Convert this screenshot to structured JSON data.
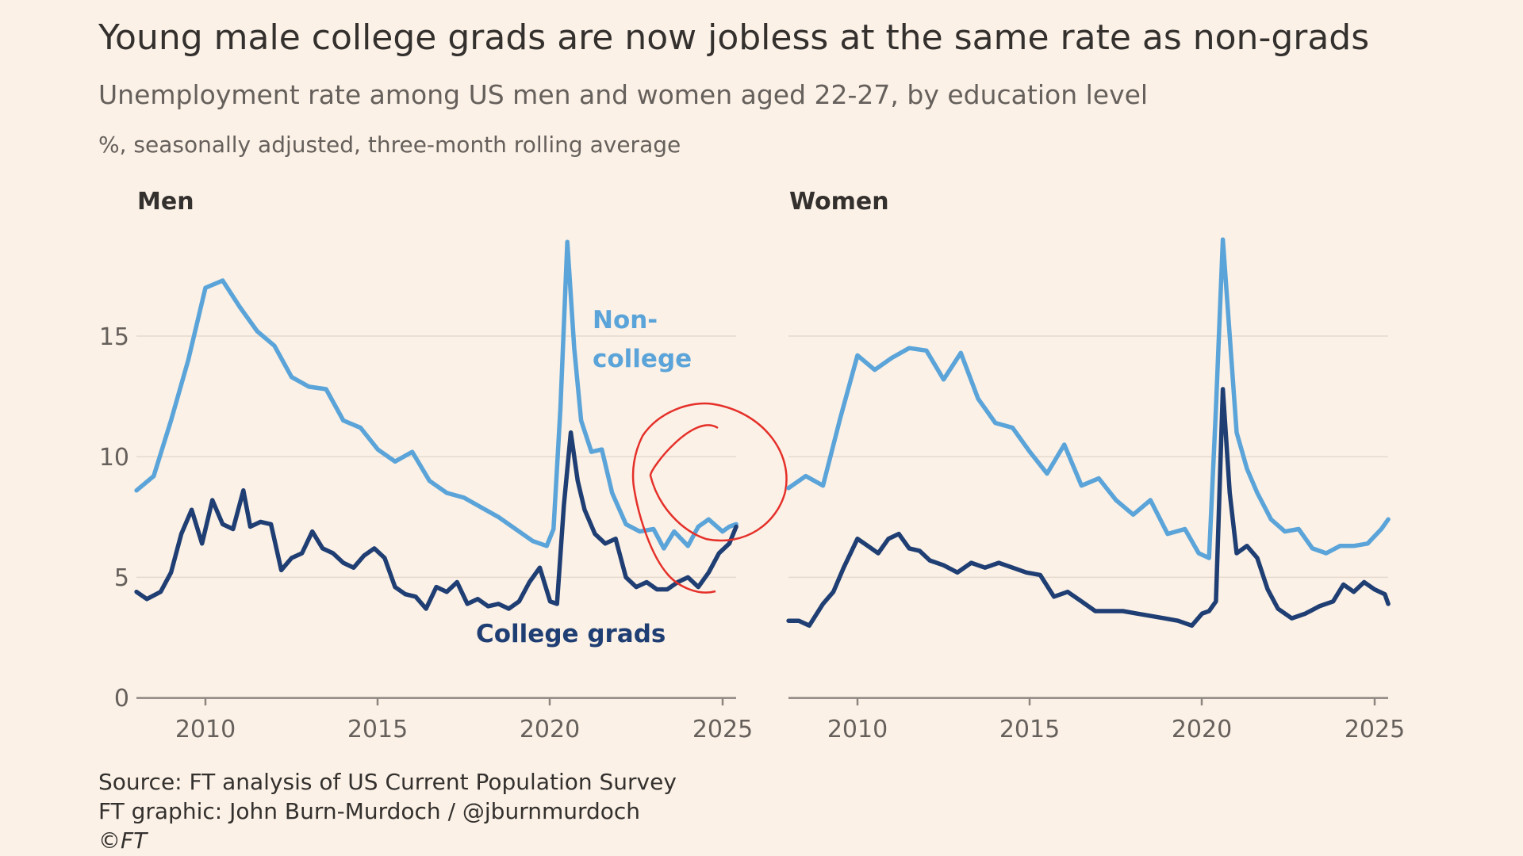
{
  "header": {
    "title": "Young male college grads are now jobless at the same rate as non-grads",
    "subtitle": "Unemployment rate among US men and women aged 22-27, by education level",
    "unit_note": "%, seasonally adjusted, three-month rolling average"
  },
  "footer": {
    "source": "Source: FT analysis of US Current Population Survey",
    "graphic": "FT graphic: John Burn-Murdoch / @jburnmurdoch",
    "copyright": "©FT"
  },
  "colors": {
    "background": "#fbf1e6",
    "non_college": "#5ba4d9",
    "college": "#1f3e73",
    "highlight_circle": "#e5302a"
  },
  "chart_data": [
    {
      "type": "line",
      "panel": "Men",
      "title": "Men",
      "xlabel": "",
      "ylabel": "%",
      "xlim": [
        2008.0,
        2025.4
      ],
      "ylim": [
        0,
        19
      ],
      "yticks": [
        0,
        5,
        10,
        15
      ],
      "xticks": [
        2010,
        2015,
        2020,
        2025
      ],
      "grid": true,
      "annotation": "red circle around 2022.5-2025.4 where the two lines converge",
      "series": [
        {
          "name": "Non-college",
          "label": "Non-\ncollege",
          "x": [
            2008.0,
            2008.5,
            2009.0,
            2009.5,
            2010.0,
            2010.5,
            2011.0,
            2011.5,
            2012.0,
            2012.5,
            2013.0,
            2013.5,
            2014.0,
            2014.5,
            2015.0,
            2015.5,
            2016.0,
            2016.5,
            2017.0,
            2017.5,
            2018.0,
            2018.5,
            2019.0,
            2019.5,
            2019.9,
            2020.1,
            2020.3,
            2020.5,
            2020.7,
            2020.9,
            2021.2,
            2021.5,
            2021.8,
            2022.2,
            2022.6,
            2023.0,
            2023.3,
            2023.6,
            2024.0,
            2024.3,
            2024.6,
            2025.0,
            2025.2,
            2025.4
          ],
          "values": [
            8.6,
            9.2,
            11.5,
            14.0,
            17.0,
            17.3,
            16.2,
            15.2,
            14.6,
            13.3,
            12.9,
            12.8,
            11.5,
            11.2,
            10.3,
            9.8,
            10.2,
            9.0,
            8.5,
            8.3,
            7.9,
            7.5,
            7.0,
            6.5,
            6.3,
            7.0,
            12.0,
            18.9,
            14.5,
            11.5,
            10.2,
            10.3,
            8.5,
            7.2,
            6.9,
            7.0,
            6.2,
            6.9,
            6.3,
            7.1,
            7.4,
            6.9,
            7.1,
            7.2
          ]
        },
        {
          "name": "College grads",
          "label": "College grads",
          "x": [
            2008.0,
            2008.3,
            2008.7,
            2009.0,
            2009.3,
            2009.6,
            2009.9,
            2010.2,
            2010.5,
            2010.8,
            2011.1,
            2011.3,
            2011.6,
            2011.9,
            2012.2,
            2012.5,
            2012.8,
            2013.1,
            2013.4,
            2013.7,
            2014.0,
            2014.3,
            2014.6,
            2014.9,
            2015.2,
            2015.5,
            2015.8,
            2016.1,
            2016.4,
            2016.7,
            2017.0,
            2017.3,
            2017.6,
            2017.9,
            2018.2,
            2018.5,
            2018.8,
            2019.1,
            2019.4,
            2019.7,
            2020.0,
            2020.2,
            2020.4,
            2020.6,
            2020.8,
            2021.0,
            2021.3,
            2021.6,
            2021.9,
            2022.2,
            2022.5,
            2022.8,
            2023.1,
            2023.4,
            2023.7,
            2024.0,
            2024.3,
            2024.6,
            2024.9,
            2025.2,
            2025.4
          ],
          "values": [
            4.4,
            4.1,
            4.4,
            5.2,
            6.8,
            7.8,
            6.4,
            8.2,
            7.2,
            7.0,
            8.6,
            7.1,
            7.3,
            7.2,
            5.3,
            5.8,
            6.0,
            6.9,
            6.2,
            6.0,
            5.6,
            5.4,
            5.9,
            6.2,
            5.8,
            4.6,
            4.3,
            4.2,
            3.7,
            4.6,
            4.4,
            4.8,
            3.9,
            4.1,
            3.8,
            3.9,
            3.7,
            4.0,
            4.8,
            5.4,
            4.0,
            3.9,
            8.0,
            11.0,
            9.0,
            7.8,
            6.8,
            6.4,
            6.6,
            5.0,
            4.6,
            4.8,
            4.5,
            4.5,
            4.8,
            5.0,
            4.6,
            5.2,
            6.0,
            6.4,
            7.1
          ]
        }
      ]
    },
    {
      "type": "line",
      "panel": "Women",
      "title": "Women",
      "xlabel": "",
      "ylabel": "%",
      "xlim": [
        2008.0,
        2025.4
      ],
      "ylim": [
        0,
        19
      ],
      "yticks": [
        0,
        5,
        10,
        15
      ],
      "xticks": [
        2010,
        2015,
        2020,
        2025
      ],
      "grid": true,
      "series": [
        {
          "name": "Non-college",
          "x": [
            2008.0,
            2008.5,
            2009.0,
            2009.5,
            2010.0,
            2010.5,
            2011.0,
            2011.5,
            2012.0,
            2012.5,
            2013.0,
            2013.5,
            2014.0,
            2014.5,
            2015.0,
            2015.5,
            2016.0,
            2016.5,
            2017.0,
            2017.5,
            2018.0,
            2018.5,
            2019.0,
            2019.5,
            2019.9,
            2020.2,
            2020.4,
            2020.6,
            2020.8,
            2021.0,
            2021.3,
            2021.6,
            2022.0,
            2022.4,
            2022.8,
            2023.2,
            2023.6,
            2024.0,
            2024.4,
            2024.8,
            2025.2,
            2025.4
          ],
          "values": [
            8.7,
            9.2,
            8.8,
            11.6,
            14.2,
            13.6,
            14.1,
            14.5,
            14.4,
            13.2,
            14.3,
            12.4,
            11.4,
            11.2,
            10.2,
            9.3,
            10.5,
            8.8,
            9.1,
            8.2,
            7.6,
            8.2,
            6.8,
            7.0,
            6.0,
            5.8,
            12.0,
            19.0,
            15.0,
            11.0,
            9.5,
            8.5,
            7.4,
            6.9,
            7.0,
            6.2,
            6.0,
            6.3,
            6.3,
            6.4,
            7.0,
            7.4
          ]
        },
        {
          "name": "College grads",
          "x": [
            2008.0,
            2008.3,
            2008.6,
            2009.0,
            2009.3,
            2009.6,
            2010.0,
            2010.3,
            2010.6,
            2010.9,
            2011.2,
            2011.5,
            2011.8,
            2012.1,
            2012.5,
            2012.9,
            2013.3,
            2013.7,
            2014.1,
            2014.5,
            2014.9,
            2015.3,
            2015.7,
            2016.1,
            2016.5,
            2016.9,
            2017.3,
            2017.7,
            2018.1,
            2018.5,
            2018.9,
            2019.3,
            2019.7,
            2020.0,
            2020.2,
            2020.4,
            2020.6,
            2020.8,
            2021.0,
            2021.3,
            2021.6,
            2021.9,
            2022.2,
            2022.6,
            2023.0,
            2023.4,
            2023.8,
            2024.1,
            2024.4,
            2024.7,
            2025.0,
            2025.3,
            2025.4
          ],
          "values": [
            3.2,
            3.2,
            3.0,
            3.9,
            4.4,
            5.4,
            6.6,
            6.3,
            6.0,
            6.6,
            6.8,
            6.2,
            6.1,
            5.7,
            5.5,
            5.2,
            5.6,
            5.4,
            5.6,
            5.4,
            5.2,
            5.1,
            4.2,
            4.4,
            4.0,
            3.6,
            3.6,
            3.6,
            3.5,
            3.4,
            3.3,
            3.2,
            3.0,
            3.5,
            3.6,
            4.0,
            12.8,
            8.5,
            6.0,
            6.3,
            5.8,
            4.5,
            3.7,
            3.3,
            3.5,
            3.8,
            4.0,
            4.7,
            4.4,
            4.8,
            4.5,
            4.3,
            3.9
          ]
        }
      ]
    }
  ]
}
